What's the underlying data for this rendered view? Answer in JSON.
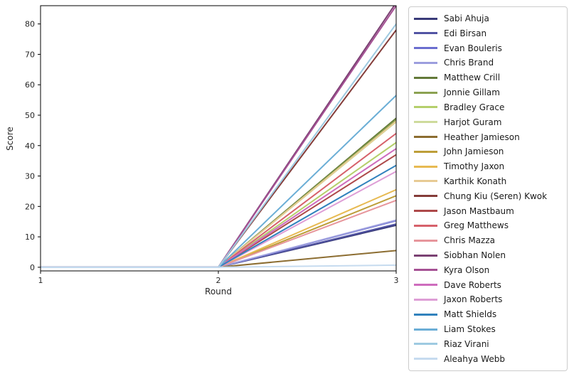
{
  "chart_data": {
    "type": "line",
    "title": "",
    "xlabel": "Round",
    "ylabel": "Score",
    "x": [
      1,
      2,
      3
    ],
    "xticks": [
      "1",
      "2",
      "3"
    ],
    "yticks": [
      "0",
      "10",
      "20",
      "30",
      "40",
      "50",
      "60",
      "70",
      "80"
    ],
    "ytick_values": [
      0,
      10,
      20,
      30,
      40,
      50,
      60,
      70,
      80
    ],
    "xlim": [
      1,
      3
    ],
    "ylim": [
      -1.2,
      86
    ],
    "grid": false,
    "legend_position": "upper right outside",
    "axis_color": "#000000",
    "text_color": "#262626",
    "series": [
      {
        "name": "Sabi Ahuja",
        "color": "#393b79",
        "values": [
          0,
          0,
          13.8
        ]
      },
      {
        "name": "Edi Birsan",
        "color": "#5254a3",
        "values": [
          0,
          0,
          14.2
        ]
      },
      {
        "name": "Evan Bouleris",
        "color": "#6b6ecf",
        "values": [
          0,
          0,
          15.3
        ]
      },
      {
        "name": "Chris Brand",
        "color": "#9c9ede",
        "values": [
          0,
          0,
          15.5
        ]
      },
      {
        "name": "Matthew Crill",
        "color": "#637939",
        "values": [
          0,
          0,
          49
        ]
      },
      {
        "name": "Jonnie Gillam",
        "color": "#8ca252",
        "values": [
          0,
          0,
          48.5
        ]
      },
      {
        "name": "Bradley Grace",
        "color": "#b5cf6b",
        "values": [
          0,
          0,
          41
        ]
      },
      {
        "name": "Harjot Guram",
        "color": "#cedb9c",
        "values": [
          0,
          0,
          47.8
        ]
      },
      {
        "name": "Heather Jamieson",
        "color": "#8c6d31",
        "values": [
          0,
          0,
          5.5
        ]
      },
      {
        "name": "John Jamieson",
        "color": "#bd9e39",
        "values": [
          0,
          0,
          23.5
        ]
      },
      {
        "name": "Timothy Jaxon",
        "color": "#e7ba52",
        "values": [
          0,
          0,
          25.5
        ]
      },
      {
        "name": "Karthik Konath",
        "color": "#e7cb94",
        "values": [
          0,
          0,
          48
        ]
      },
      {
        "name": "Chung Kiu (Seren) Kwok",
        "color": "#843c39",
        "values": [
          0,
          0,
          78
        ]
      },
      {
        "name": "Jason Mastbaum",
        "color": "#ad494a",
        "values": [
          0,
          0,
          37
        ]
      },
      {
        "name": "Greg Matthews",
        "color": "#d6616b",
        "values": [
          0,
          0,
          44
        ]
      },
      {
        "name": "Chris Mazza",
        "color": "#e7969c",
        "values": [
          0,
          0,
          22
        ]
      },
      {
        "name": "Siobhan Nolen",
        "color": "#7b4173",
        "values": [
          0,
          0,
          87
        ]
      },
      {
        "name": "Kyra Olson",
        "color": "#a55194",
        "values": [
          0,
          0,
          86
        ]
      },
      {
        "name": "Dave Roberts",
        "color": "#ce6dbd",
        "values": [
          0,
          0,
          39
        ]
      },
      {
        "name": "Jaxon Roberts",
        "color": "#de9ed6",
        "values": [
          0,
          0,
          31.5
        ]
      },
      {
        "name": "Matt Shields",
        "color": "#3182bd",
        "values": [
          0,
          0,
          33.5
        ]
      },
      {
        "name": "Liam Stokes",
        "color": "#6baed6",
        "values": [
          0,
          0,
          56.5
        ]
      },
      {
        "name": "Riaz Virani",
        "color": "#9ecae1",
        "values": [
          0,
          0,
          80
        ]
      },
      {
        "name": "Aleahya Webb",
        "color": "#c6dbef",
        "values": [
          0,
          0,
          0.7
        ]
      }
    ]
  }
}
